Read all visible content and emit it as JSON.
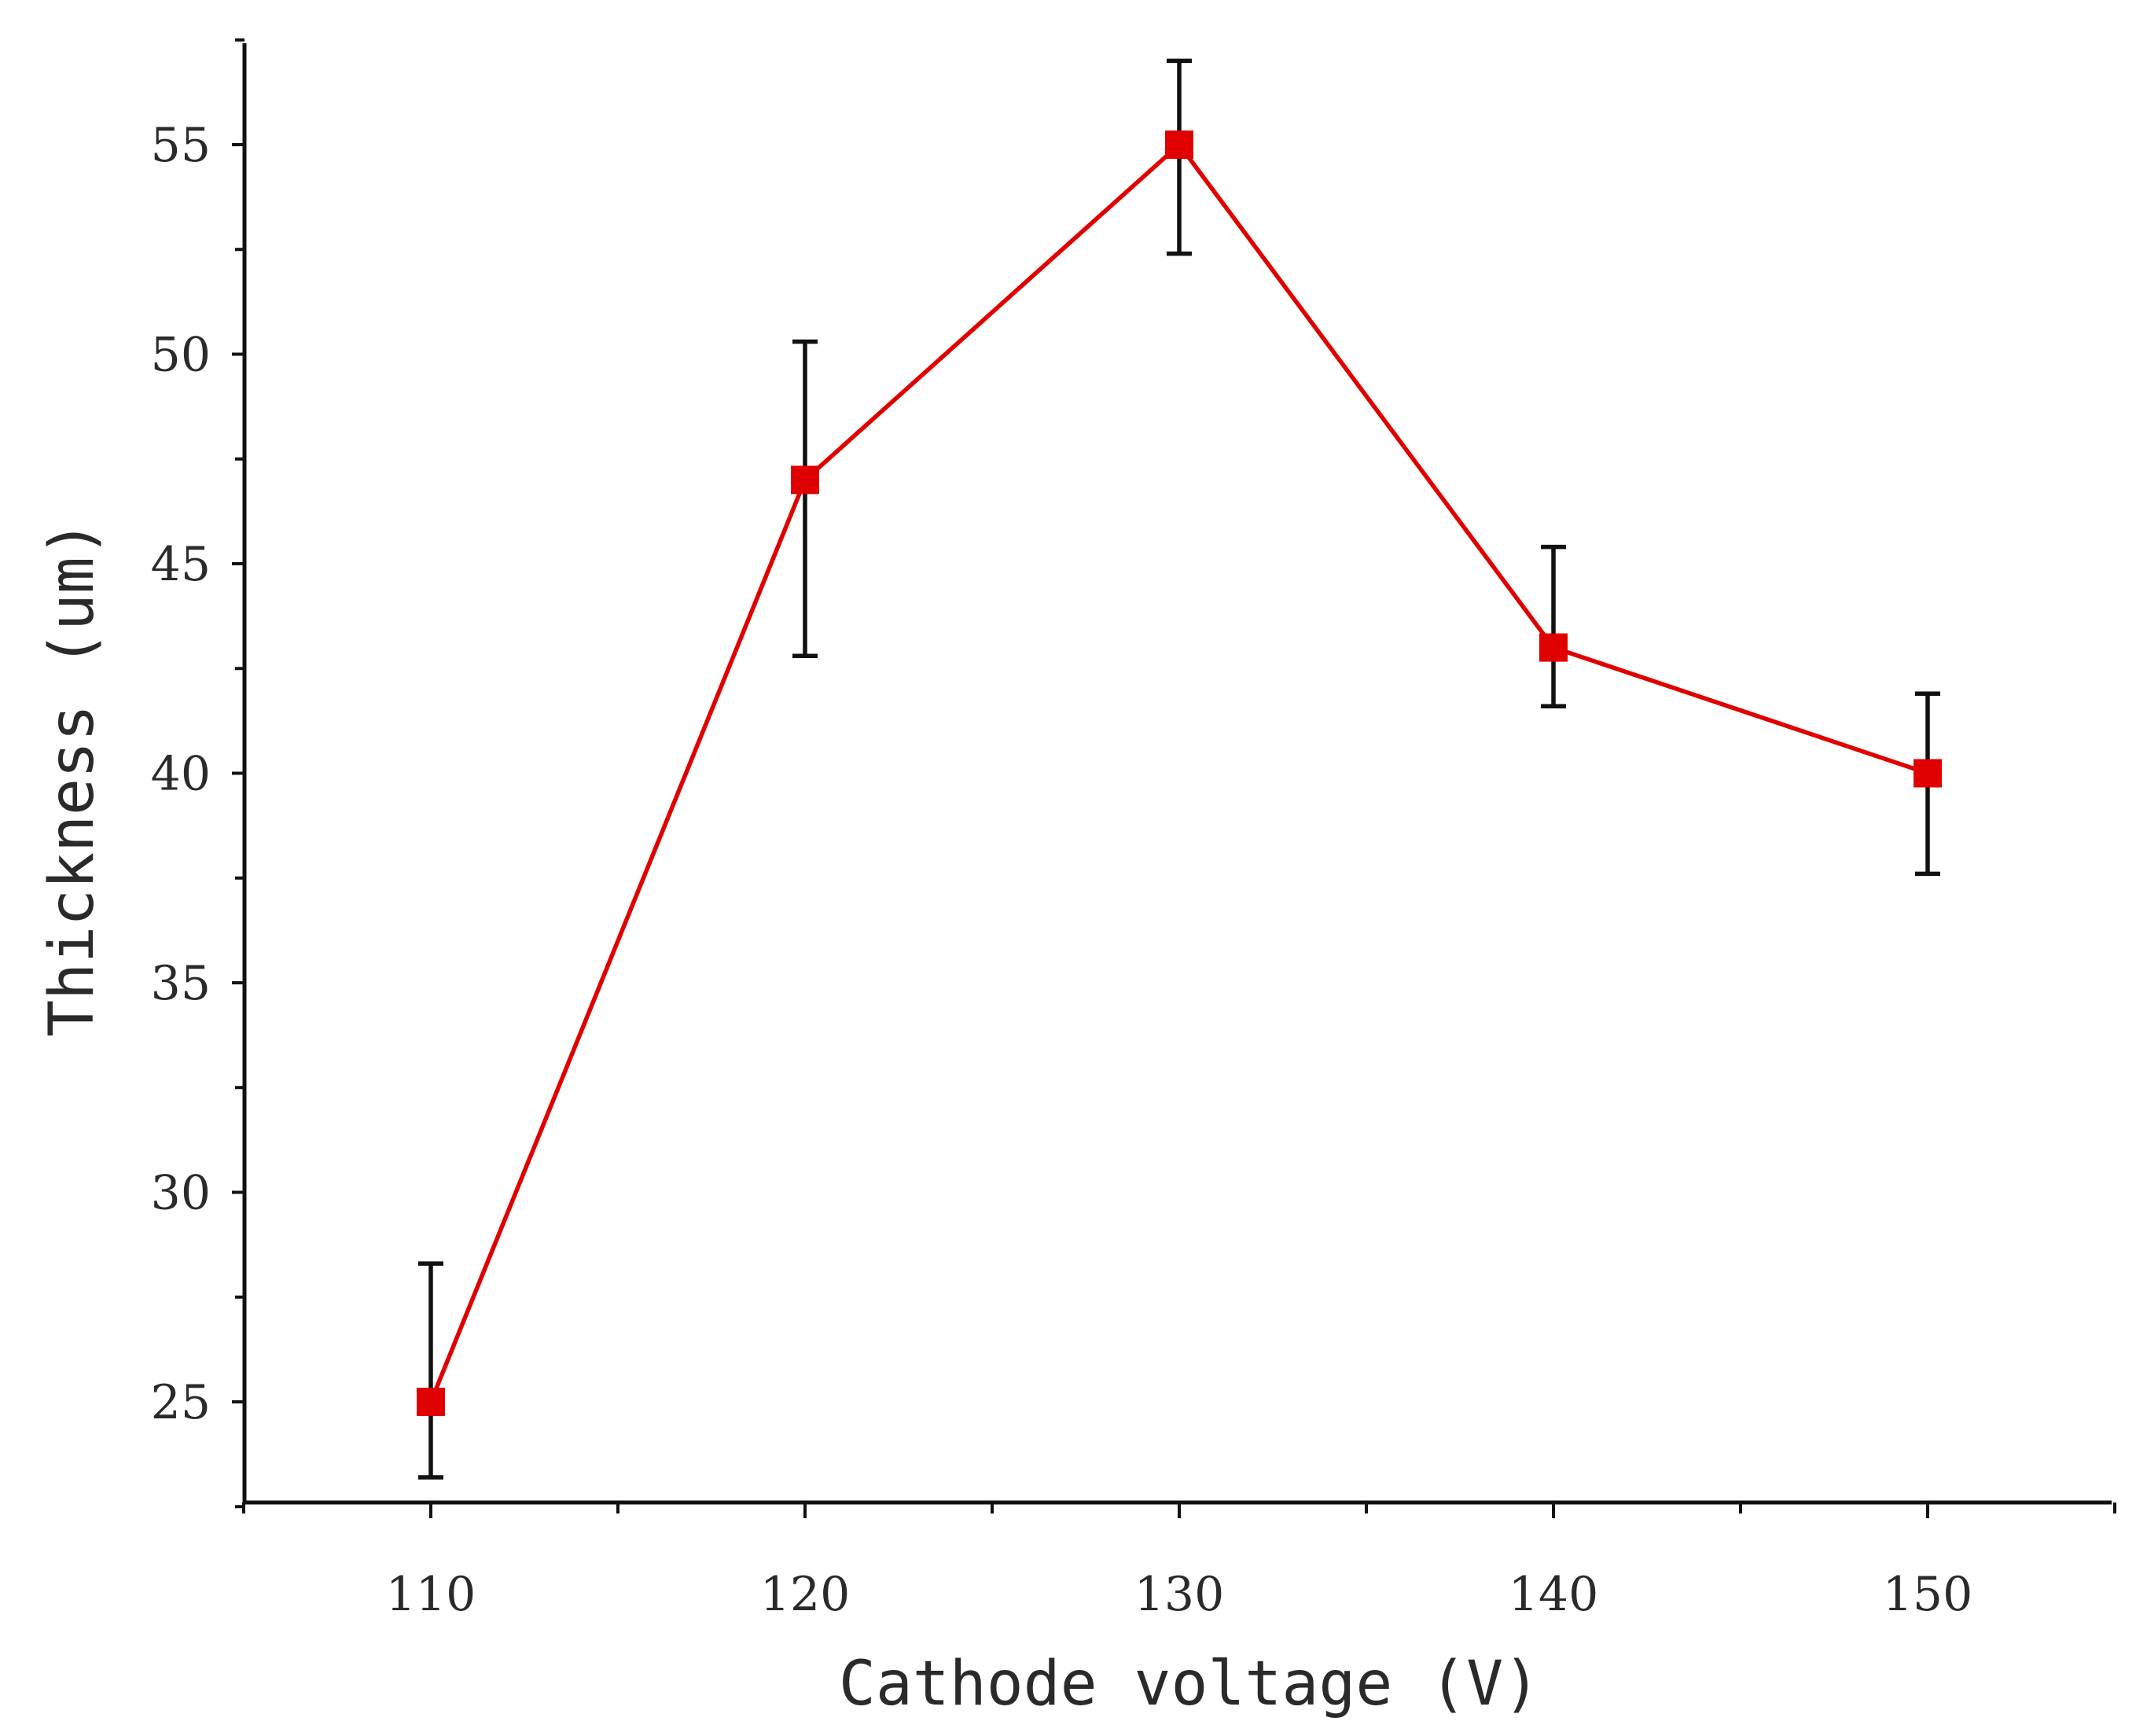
{
  "chart_data": {
    "type": "line",
    "title": "",
    "xlabel": "Cathode voltage (V)",
    "ylabel": "Thickness (um)",
    "x": [
      110,
      120,
      130,
      140,
      150
    ],
    "series": [
      {
        "name": "Thickness",
        "color": "#e00000",
        "marker": "square",
        "values": [
          25,
          47,
          55,
          43,
          40
        ],
        "error_upper": [
          28.3,
          50.3,
          57.0,
          45.4,
          41.9
        ],
        "error_lower": [
          23.2,
          42.8,
          52.4,
          41.6,
          37.6
        ]
      }
    ],
    "xlim": [
      105,
      155
    ],
    "ylim": [
      22.5,
      57.5
    ],
    "xticks": [
      110,
      120,
      130,
      140,
      150
    ],
    "xtick_labels": [
      "110",
      "120",
      "130",
      "140",
      "150"
    ],
    "yticks": [
      25,
      30,
      35,
      40,
      45,
      50,
      55
    ],
    "ytick_labels": [
      "25",
      "30",
      "35",
      "40",
      "45",
      "50",
      "55"
    ],
    "x_minor_step": 5,
    "y_minor_step": 2.5,
    "grid": false,
    "legend": "none"
  }
}
